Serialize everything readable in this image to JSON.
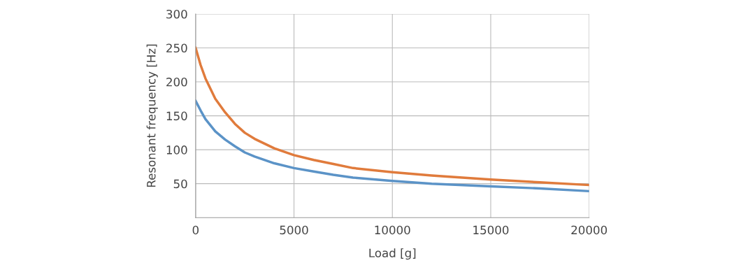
{
  "chart_data": {
    "type": "line",
    "xlabel": "Load [g]",
    "ylabel": "Resonant frequency [Hz]",
    "xlim": [
      0,
      20000
    ],
    "xticks": [
      0,
      5000,
      10000,
      15000,
      20000
    ],
    "ylim": [
      0,
      300
    ],
    "yticks": [
      50,
      100,
      150,
      200,
      250,
      300
    ],
    "grid": true,
    "marker": "none",
    "line_style": "solid",
    "series": [
      {
        "color": "#5b93c7",
        "x": [
          0,
          250,
          500,
          1000,
          1500,
          2000,
          2500,
          3000,
          4000,
          5000,
          6000,
          7000,
          8000,
          10000,
          12000,
          15000,
          17500,
          20000
        ],
        "values": [
          172,
          158,
          145,
          127,
          115,
          105,
          96,
          90,
          80,
          73,
          68,
          63,
          59,
          54,
          50,
          46,
          43,
          39
        ]
      },
      {
        "color": "#e07b3c",
        "x": [
          0,
          250,
          500,
          1000,
          1500,
          2000,
          2500,
          3000,
          4000,
          5000,
          6000,
          7000,
          8000,
          10000,
          12000,
          15000,
          17500,
          20000
        ],
        "values": [
          250,
          225,
          205,
          175,
          155,
          138,
          125,
          116,
          102,
          92,
          85,
          79,
          73,
          67,
          62,
          56,
          52,
          48
        ]
      }
    ]
  }
}
